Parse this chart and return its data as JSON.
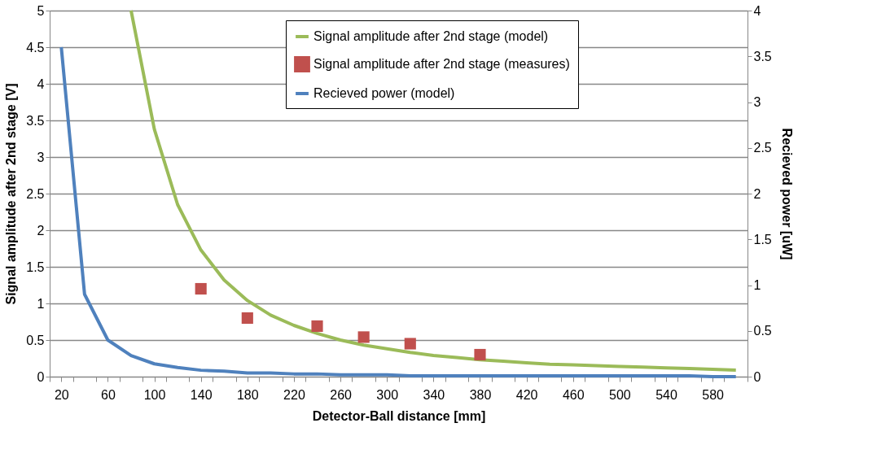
{
  "chart_data": {
    "type": "line",
    "xlabel": "Detector-Ball distance [mm]",
    "ylabel": "Signal amplitude after 2nd stage [V]",
    "y2label": "Recieved power [uW]",
    "x": [
      20,
      40,
      60,
      80,
      100,
      120,
      140,
      160,
      180,
      200,
      220,
      240,
      260,
      280,
      300,
      320,
      340,
      360,
      380,
      400,
      420,
      440,
      460,
      480,
      500,
      520,
      540,
      560,
      580,
      600
    ],
    "xlim": [
      10,
      610
    ],
    "xticks": [
      20,
      60,
      100,
      140,
      180,
      220,
      260,
      300,
      340,
      380,
      420,
      460,
      500,
      540,
      580,
      {
        "value": 10,
        "label": null
      },
      {
        "value": 30,
        "label": null
      },
      {
        "value": 50,
        "label": null
      },
      {
        "value": 70,
        "label": null
      },
      {
        "value": 90,
        "label": null
      },
      {
        "value": 110,
        "label": null
      },
      {
        "value": 130,
        "label": null
      },
      {
        "value": 150,
        "label": null
      },
      {
        "value": 170,
        "label": null
      },
      {
        "value": 190,
        "label": null
      },
      {
        "value": 210,
        "label": null
      },
      {
        "value": 230,
        "label": null
      },
      {
        "value": 250,
        "label": null
      },
      {
        "value": 270,
        "label": null
      },
      {
        "value": 290,
        "label": null
      },
      {
        "value": 310,
        "label": null
      },
      {
        "value": 330,
        "label": null
      },
      {
        "value": 350,
        "label": null
      },
      {
        "value": 370,
        "label": null
      },
      {
        "value": 390,
        "label": null
      },
      {
        "value": 410,
        "label": null
      },
      {
        "value": 430,
        "label": null
      },
      {
        "value": 450,
        "label": null
      },
      {
        "value": 470,
        "label": null
      },
      {
        "value": 490,
        "label": null
      },
      {
        "value": 510,
        "label": null
      },
      {
        "value": 530,
        "label": null
      },
      {
        "value": 550,
        "label": null
      },
      {
        "value": 570,
        "label": null
      },
      {
        "value": 590,
        "label": null
      },
      {
        "value": 610,
        "label": null
      }
    ],
    "ylim": [
      0,
      5
    ],
    "yticks": [
      0,
      0.5,
      1,
      1.5,
      2,
      2.5,
      3,
      3.5,
      4,
      4.5,
      5
    ],
    "y2lim": [
      0,
      4
    ],
    "y2ticks": [
      0,
      0.5,
      1,
      1.5,
      2,
      2.5,
      3,
      3.5,
      4
    ],
    "grid": "y",
    "legend": "top right",
    "series": [
      {
        "name": "Signal amplitude after 2nd stage (model)",
        "color": "#9bbb59",
        "values": [
          null,
          null,
          null,
          5.0,
          3.38,
          2.35,
          1.73,
          1.32,
          1.04,
          0.84,
          0.7,
          0.59,
          0.5,
          0.43,
          0.38,
          0.33,
          0.29,
          0.26,
          0.23,
          0.21,
          0.19,
          0.17,
          0.16,
          0.15,
          0.14,
          0.13,
          0.12,
          0.11,
          0.1,
          0.09
        ]
      },
      {
        "name": "Signal amplitude after 2nd stage (measures)",
        "type": "scatter",
        "marker": "square",
        "color": "#c0504d",
        "x": [
          140,
          180,
          240,
          280,
          320,
          380
        ],
        "values": [
          1.2,
          0.8,
          0.69,
          0.54,
          0.45,
          0.3
        ]
      },
      {
        "name": "Recieved power (model)",
        "axis": "y2",
        "color": "#4f81bd",
        "values": [
          3.6,
          0.9,
          0.4,
          0.23,
          0.14,
          0.1,
          0.07,
          0.06,
          0.04,
          0.04,
          0.03,
          0.03,
          0.02,
          0.02,
          0.02,
          0.01,
          0.01,
          0.01,
          0.01,
          0.01,
          0.01,
          0.01,
          0.01,
          0.01,
          0.01,
          0.01,
          0.01,
          0.01,
          0.0,
          0.0
        ]
      }
    ]
  }
}
